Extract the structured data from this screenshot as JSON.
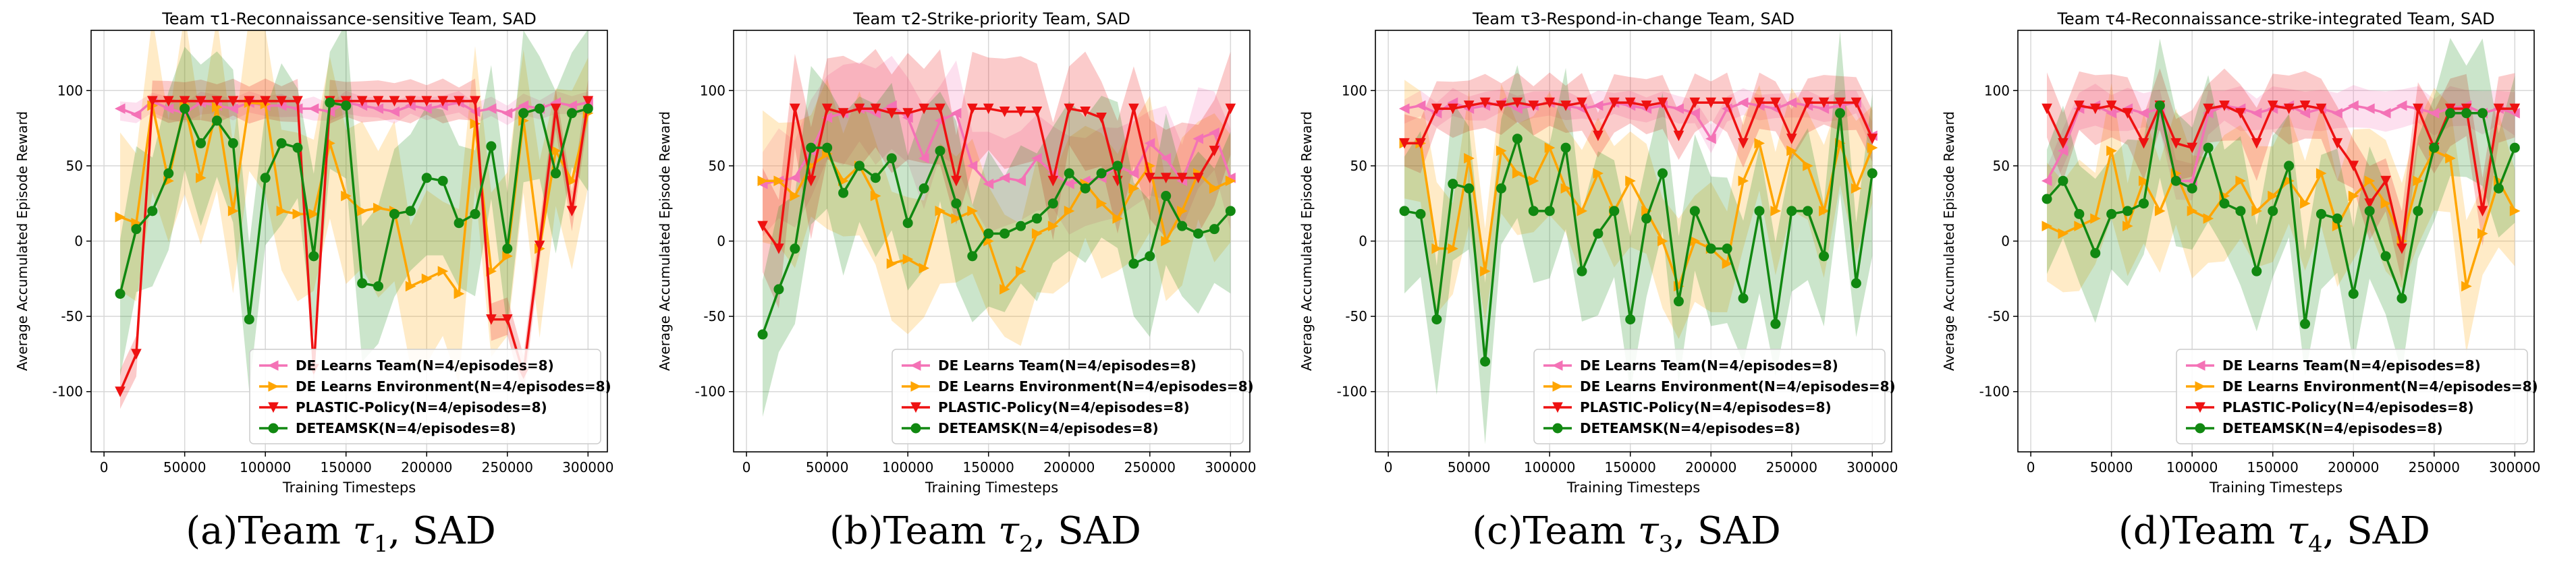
{
  "figure": {
    "captions": [
      {
        "prefix": "(a)Team ",
        "symbol": "τ",
        "sub": "1",
        "suffix": ", SAD"
      },
      {
        "prefix": "(b)Team ",
        "symbol": "τ",
        "sub": "2",
        "suffix": ", SAD"
      },
      {
        "prefix": "(c)Team ",
        "symbol": "τ",
        "sub": "3",
        "suffix": ", SAD"
      },
      {
        "prefix": "(d)Team ",
        "symbol": "τ",
        "sub": "4",
        "suffix": ", SAD"
      }
    ]
  },
  "colors": {
    "de_team": "#f472b6",
    "de_env": "#ffa500",
    "plastic": "#ee1111",
    "deteamsk": "#118811"
  },
  "chart_data": [
    {
      "type": "line",
      "title": "Team τ1-Reconnaissance-sensitive Team, SAD",
      "xlabel": "Training Timesteps",
      "ylabel": "Average Accumulated Episode Reward",
      "xlim": [
        -8000,
        312000
      ],
      "ylim": [
        -140,
        140
      ],
      "xticks": [
        0,
        50000,
        100000,
        150000,
        200000,
        250000,
        300000
      ],
      "yticks": [
        -100,
        -50,
        0,
        50,
        100
      ],
      "grid": true,
      "legend": "lower-right",
      "x": [
        10000,
        20000,
        30000,
        40000,
        50000,
        60000,
        70000,
        80000,
        90000,
        100000,
        110000,
        120000,
        130000,
        140000,
        150000,
        160000,
        170000,
        180000,
        190000,
        200000,
        210000,
        220000,
        230000,
        240000,
        250000,
        260000,
        270000,
        280000,
        290000,
        300000
      ],
      "series": [
        {
          "name": "DE Learns Team(N=4/episodes=8)",
          "marker": "triangle-left",
          "values": [
            88,
            84,
            93,
            88,
            85,
            92,
            90,
            88,
            92,
            90,
            90,
            88,
            88,
            86,
            92,
            90,
            88,
            86,
            90,
            88,
            90,
            92,
            86,
            88,
            85,
            90,
            88,
            92,
            90,
            92
          ],
          "band": 8
        },
        {
          "name": "DE Learns Environment(N=4/episodes=8)",
          "marker": "triangle-right",
          "values": [
            16,
            12,
            90,
            40,
            91,
            42,
            89,
            20,
            92,
            91,
            20,
            18,
            18,
            65,
            30,
            20,
            22,
            20,
            -30,
            -25,
            -20,
            -35,
            78,
            -20,
            -10,
            80,
            -5,
            60,
            40,
            85
          ],
          "band": 60
        },
        {
          "name": "PLASTIC-Policy(N=4/episodes=8)",
          "marker": "triangle-down",
          "values": [
            -100,
            -75,
            93,
            93,
            93,
            93,
            93,
            93,
            93,
            93,
            93,
            93,
            -85,
            93,
            93,
            93,
            93,
            93,
            93,
            93,
            93,
            93,
            93,
            -52,
            -52,
            -88,
            -3,
            88,
            20,
            93
          ],
          "band": 15
        },
        {
          "name": "DETEAMSK(N=4/episodes=8)",
          "marker": "circle",
          "values": [
            -35,
            8,
            20,
            45,
            88,
            65,
            80,
            65,
            -52,
            42,
            65,
            62,
            -10,
            92,
            90,
            -28,
            -30,
            18,
            20,
            42,
            40,
            12,
            18,
            63,
            -5,
            85,
            88,
            45,
            85,
            88
          ],
          "band": 55
        }
      ]
    },
    {
      "type": "line",
      "title": "Team τ2-Strike-priority Team, SAD",
      "xlabel": "Training Timesteps",
      "ylabel": "Average Accumulated Episode Reward",
      "xlim": [
        -8000,
        312000
      ],
      "ylim": [
        -140,
        140
      ],
      "xticks": [
        0,
        50000,
        100000,
        150000,
        200000,
        250000,
        300000
      ],
      "yticks": [
        -100,
        -50,
        0,
        50,
        100
      ],
      "grid": true,
      "legend": "lower-right",
      "x": [
        10000,
        20000,
        30000,
        40000,
        50000,
        60000,
        70000,
        80000,
        90000,
        100000,
        110000,
        120000,
        130000,
        140000,
        150000,
        160000,
        170000,
        180000,
        190000,
        200000,
        210000,
        220000,
        230000,
        240000,
        250000,
        260000,
        270000,
        280000,
        290000,
        300000
      ],
      "series": [
        {
          "name": "DE Learns Team(N=4/episodes=8)",
          "marker": "triangle-left",
          "values": [
            38,
            40,
            42,
            60,
            82,
            85,
            88,
            85,
            90,
            82,
            55,
            80,
            85,
            50,
            38,
            42,
            40,
            55,
            45,
            38,
            40,
            42,
            50,
            45,
            65,
            55,
            40,
            68,
            72,
            42
          ],
          "band": 35
        },
        {
          "name": "DE Learns Environment(N=4/episodes=8)",
          "marker": "triangle-right",
          "values": [
            40,
            40,
            30,
            50,
            58,
            40,
            50,
            30,
            -15,
            -12,
            -18,
            20,
            15,
            20,
            0,
            -32,
            -20,
            5,
            10,
            20,
            38,
            25,
            15,
            35,
            50,
            0,
            20,
            45,
            35,
            40
          ],
          "band": 50
        },
        {
          "name": "PLASTIC-Policy(N=4/episodes=8)",
          "marker": "triangle-down",
          "values": [
            10,
            -5,
            88,
            40,
            88,
            85,
            88,
            88,
            85,
            85,
            88,
            88,
            40,
            88,
            88,
            86,
            86,
            86,
            40,
            88,
            86,
            82,
            40,
            88,
            42,
            42,
            42,
            42,
            60,
            88
          ],
          "band": 40
        },
        {
          "name": "DETEAMSK(N=4/episodes=8)",
          "marker": "circle",
          "values": [
            -62,
            -32,
            -5,
            62,
            62,
            32,
            50,
            42,
            55,
            12,
            35,
            60,
            25,
            -10,
            5,
            5,
            10,
            15,
            25,
            45,
            35,
            45,
            50,
            -15,
            -10,
            30,
            10,
            5,
            8,
            20
          ],
          "band": 55
        }
      ]
    },
    {
      "type": "line",
      "title": "Team τ3-Respond-in-change Team, SAD",
      "xlabel": "Training Timesteps",
      "ylabel": "Average Accumulated Episode Reward",
      "xlim": [
        -8000,
        312000
      ],
      "ylim": [
        -140,
        140
      ],
      "xticks": [
        0,
        50000,
        100000,
        150000,
        200000,
        250000,
        300000
      ],
      "yticks": [
        -100,
        -50,
        0,
        50,
        100
      ],
      "grid": true,
      "legend": "lower-right",
      "x": [
        10000,
        20000,
        30000,
        40000,
        50000,
        60000,
        70000,
        80000,
        90000,
        100000,
        110000,
        120000,
        130000,
        140000,
        150000,
        160000,
        170000,
        180000,
        190000,
        200000,
        210000,
        220000,
        230000,
        240000,
        250000,
        260000,
        270000,
        280000,
        290000,
        300000
      ],
      "series": [
        {
          "name": "DE Learns Team(N=4/episodes=8)",
          "marker": "triangle-left",
          "values": [
            88,
            90,
            85,
            92,
            88,
            90,
            92,
            88,
            90,
            92,
            90,
            88,
            90,
            92,
            90,
            88,
            90,
            88,
            85,
            68,
            88,
            92,
            90,
            88,
            92,
            90,
            88,
            90,
            92,
            70
          ],
          "band": 10
        },
        {
          "name": "DE Learns Environment(N=4/episodes=8)",
          "marker": "triangle-right",
          "values": [
            65,
            65,
            -5,
            -5,
            55,
            -20,
            60,
            45,
            40,
            62,
            35,
            20,
            45,
            20,
            40,
            20,
            0,
            -30,
            0,
            -5,
            -15,
            40,
            65,
            20,
            60,
            50,
            20,
            65,
            35,
            62
          ],
          "band": 45
        },
        {
          "name": "PLASTIC-Policy(N=4/episodes=8)",
          "marker": "triangle-down",
          "values": [
            65,
            65,
            88,
            88,
            90,
            92,
            90,
            92,
            90,
            92,
            90,
            92,
            70,
            92,
            92,
            90,
            92,
            70,
            92,
            92,
            92,
            65,
            92,
            92,
            68,
            92,
            92,
            92,
            92,
            68
          ],
          "band": 20
        },
        {
          "name": "DETEAMSK(N=4/episodes=8)",
          "marker": "circle",
          "values": [
            20,
            18,
            -52,
            38,
            35,
            -80,
            35,
            68,
            20,
            20,
            62,
            -20,
            5,
            20,
            -52,
            15,
            45,
            -40,
            20,
            -5,
            -5,
            -38,
            20,
            -55,
            20,
            20,
            -10,
            85,
            -28,
            45
          ],
          "band": 55
        }
      ]
    },
    {
      "type": "line",
      "title": "Team τ4-Reconnaissance-strike-integrated Team, SAD",
      "xlabel": "Training Timesteps",
      "ylabel": "Average Accumulated Episode Reward",
      "xlim": [
        -8000,
        312000
      ],
      "ylim": [
        -140,
        140
      ],
      "xticks": [
        0,
        50000,
        100000,
        150000,
        200000,
        250000,
        300000
      ],
      "yticks": [
        -100,
        -50,
        0,
        50,
        100
      ],
      "grid": true,
      "legend": "lower-right",
      "x": [
        10000,
        20000,
        30000,
        40000,
        50000,
        60000,
        70000,
        80000,
        90000,
        100000,
        110000,
        120000,
        130000,
        140000,
        150000,
        160000,
        170000,
        180000,
        190000,
        200000,
        210000,
        220000,
        230000,
        240000,
        250000,
        260000,
        270000,
        280000,
        290000,
        300000
      ],
      "series": [
        {
          "name": "DE Learns Team(N=4/episodes=8)",
          "marker": "triangle-left",
          "values": [
            40,
            60,
            88,
            90,
            85,
            88,
            85,
            88,
            40,
            40,
            85,
            90,
            88,
            85,
            88,
            90,
            85,
            88,
            85,
            90,
            88,
            85,
            90,
            88,
            85,
            88,
            90,
            85,
            88,
            85
          ],
          "band": 15
        },
        {
          "name": "DE Learns Environment(N=4/episodes=8)",
          "marker": "triangle-right",
          "values": [
            10,
            5,
            10,
            15,
            60,
            10,
            40,
            20,
            45,
            20,
            15,
            30,
            40,
            20,
            30,
            40,
            25,
            45,
            10,
            30,
            40,
            25,
            0,
            40,
            60,
            55,
            -30,
            5,
            40,
            20
          ],
          "band": 45
        },
        {
          "name": "PLASTIC-Policy(N=4/episodes=8)",
          "marker": "triangle-down",
          "values": [
            88,
            65,
            90,
            88,
            90,
            85,
            65,
            90,
            65,
            62,
            88,
            90,
            85,
            65,
            90,
            88,
            90,
            88,
            65,
            50,
            25,
            40,
            -5,
            88,
            62,
            88,
            88,
            20,
            88,
            88
          ],
          "band": 25
        },
        {
          "name": "DETEAMSK(N=4/episodes=8)",
          "marker": "circle",
          "values": [
            28,
            40,
            18,
            -8,
            18,
            20,
            25,
            90,
            40,
            35,
            62,
            25,
            20,
            -20,
            20,
            50,
            -55,
            18,
            15,
            -35,
            20,
            -10,
            -38,
            20,
            62,
            85,
            85,
            85,
            35,
            62
          ],
          "band": 50
        }
      ]
    }
  ]
}
